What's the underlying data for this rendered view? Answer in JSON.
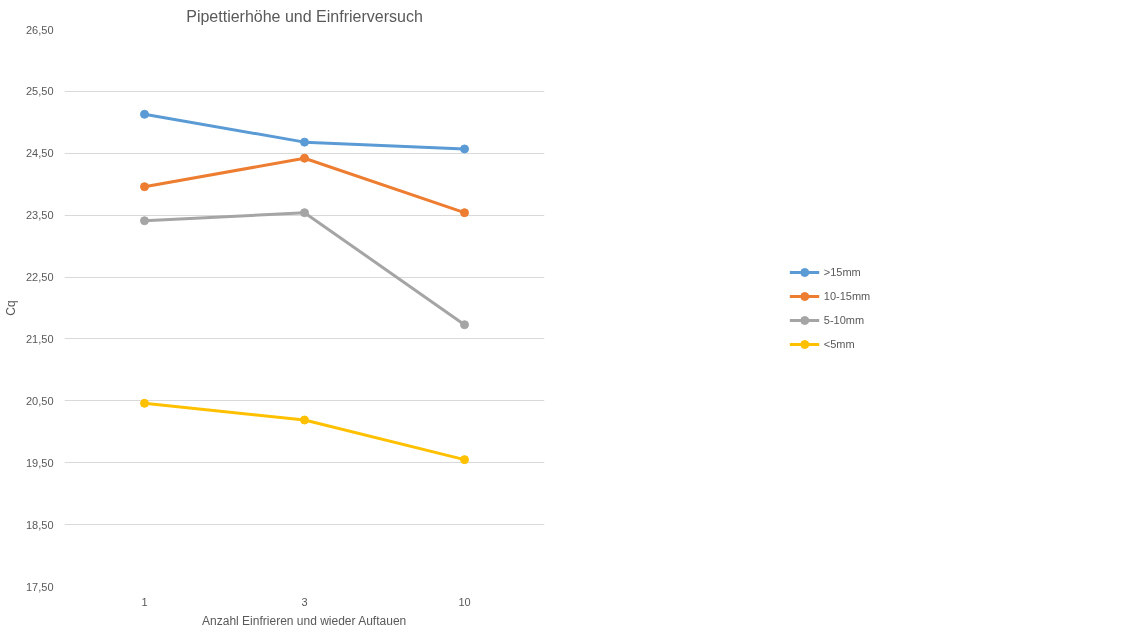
{
  "chart_data": {
    "type": "line",
    "title": "Pipettierhöhe und Einfrierversuch",
    "xlabel": "Anzahl Einfrieren und wieder Auftauen",
    "ylabel": "Cq",
    "categories": [
      "1",
      "3",
      "10"
    ],
    "series": [
      {
        "name": ">15mm",
        "color": "#5b9bd5",
        "values": [
          25.13,
          24.68,
          24.57
        ]
      },
      {
        "name": "10-15mm",
        "color": "#ed7d31",
        "values": [
          23.96,
          24.42,
          23.54
        ]
      },
      {
        "name": "5-10mm",
        "color": "#a5a5a5",
        "values": [
          23.41,
          23.54,
          21.73
        ]
      },
      {
        "name": "<5mm",
        "color": "#ffc000",
        "values": [
          20.46,
          20.19,
          19.55
        ]
      }
    ],
    "ylim": [
      17.5,
      26.5
    ],
    "yticks": [
      {
        "value": 17.5,
        "label": "17,50"
      },
      {
        "value": 18.5,
        "label": "18,50"
      },
      {
        "value": 19.5,
        "label": "19,50"
      },
      {
        "value": 20.5,
        "label": "20,50"
      },
      {
        "value": 21.5,
        "label": "21,50"
      },
      {
        "value": 22.5,
        "label": "22,50"
      },
      {
        "value": 23.5,
        "label": "23,50"
      },
      {
        "value": 24.5,
        "label": "24,50"
      },
      {
        "value": 25.5,
        "label": "25,50"
      },
      {
        "value": 26.5,
        "label": "26,50"
      }
    ],
    "grid": "y",
    "legend": "right",
    "marker": "circle",
    "line_style": "solid"
  }
}
